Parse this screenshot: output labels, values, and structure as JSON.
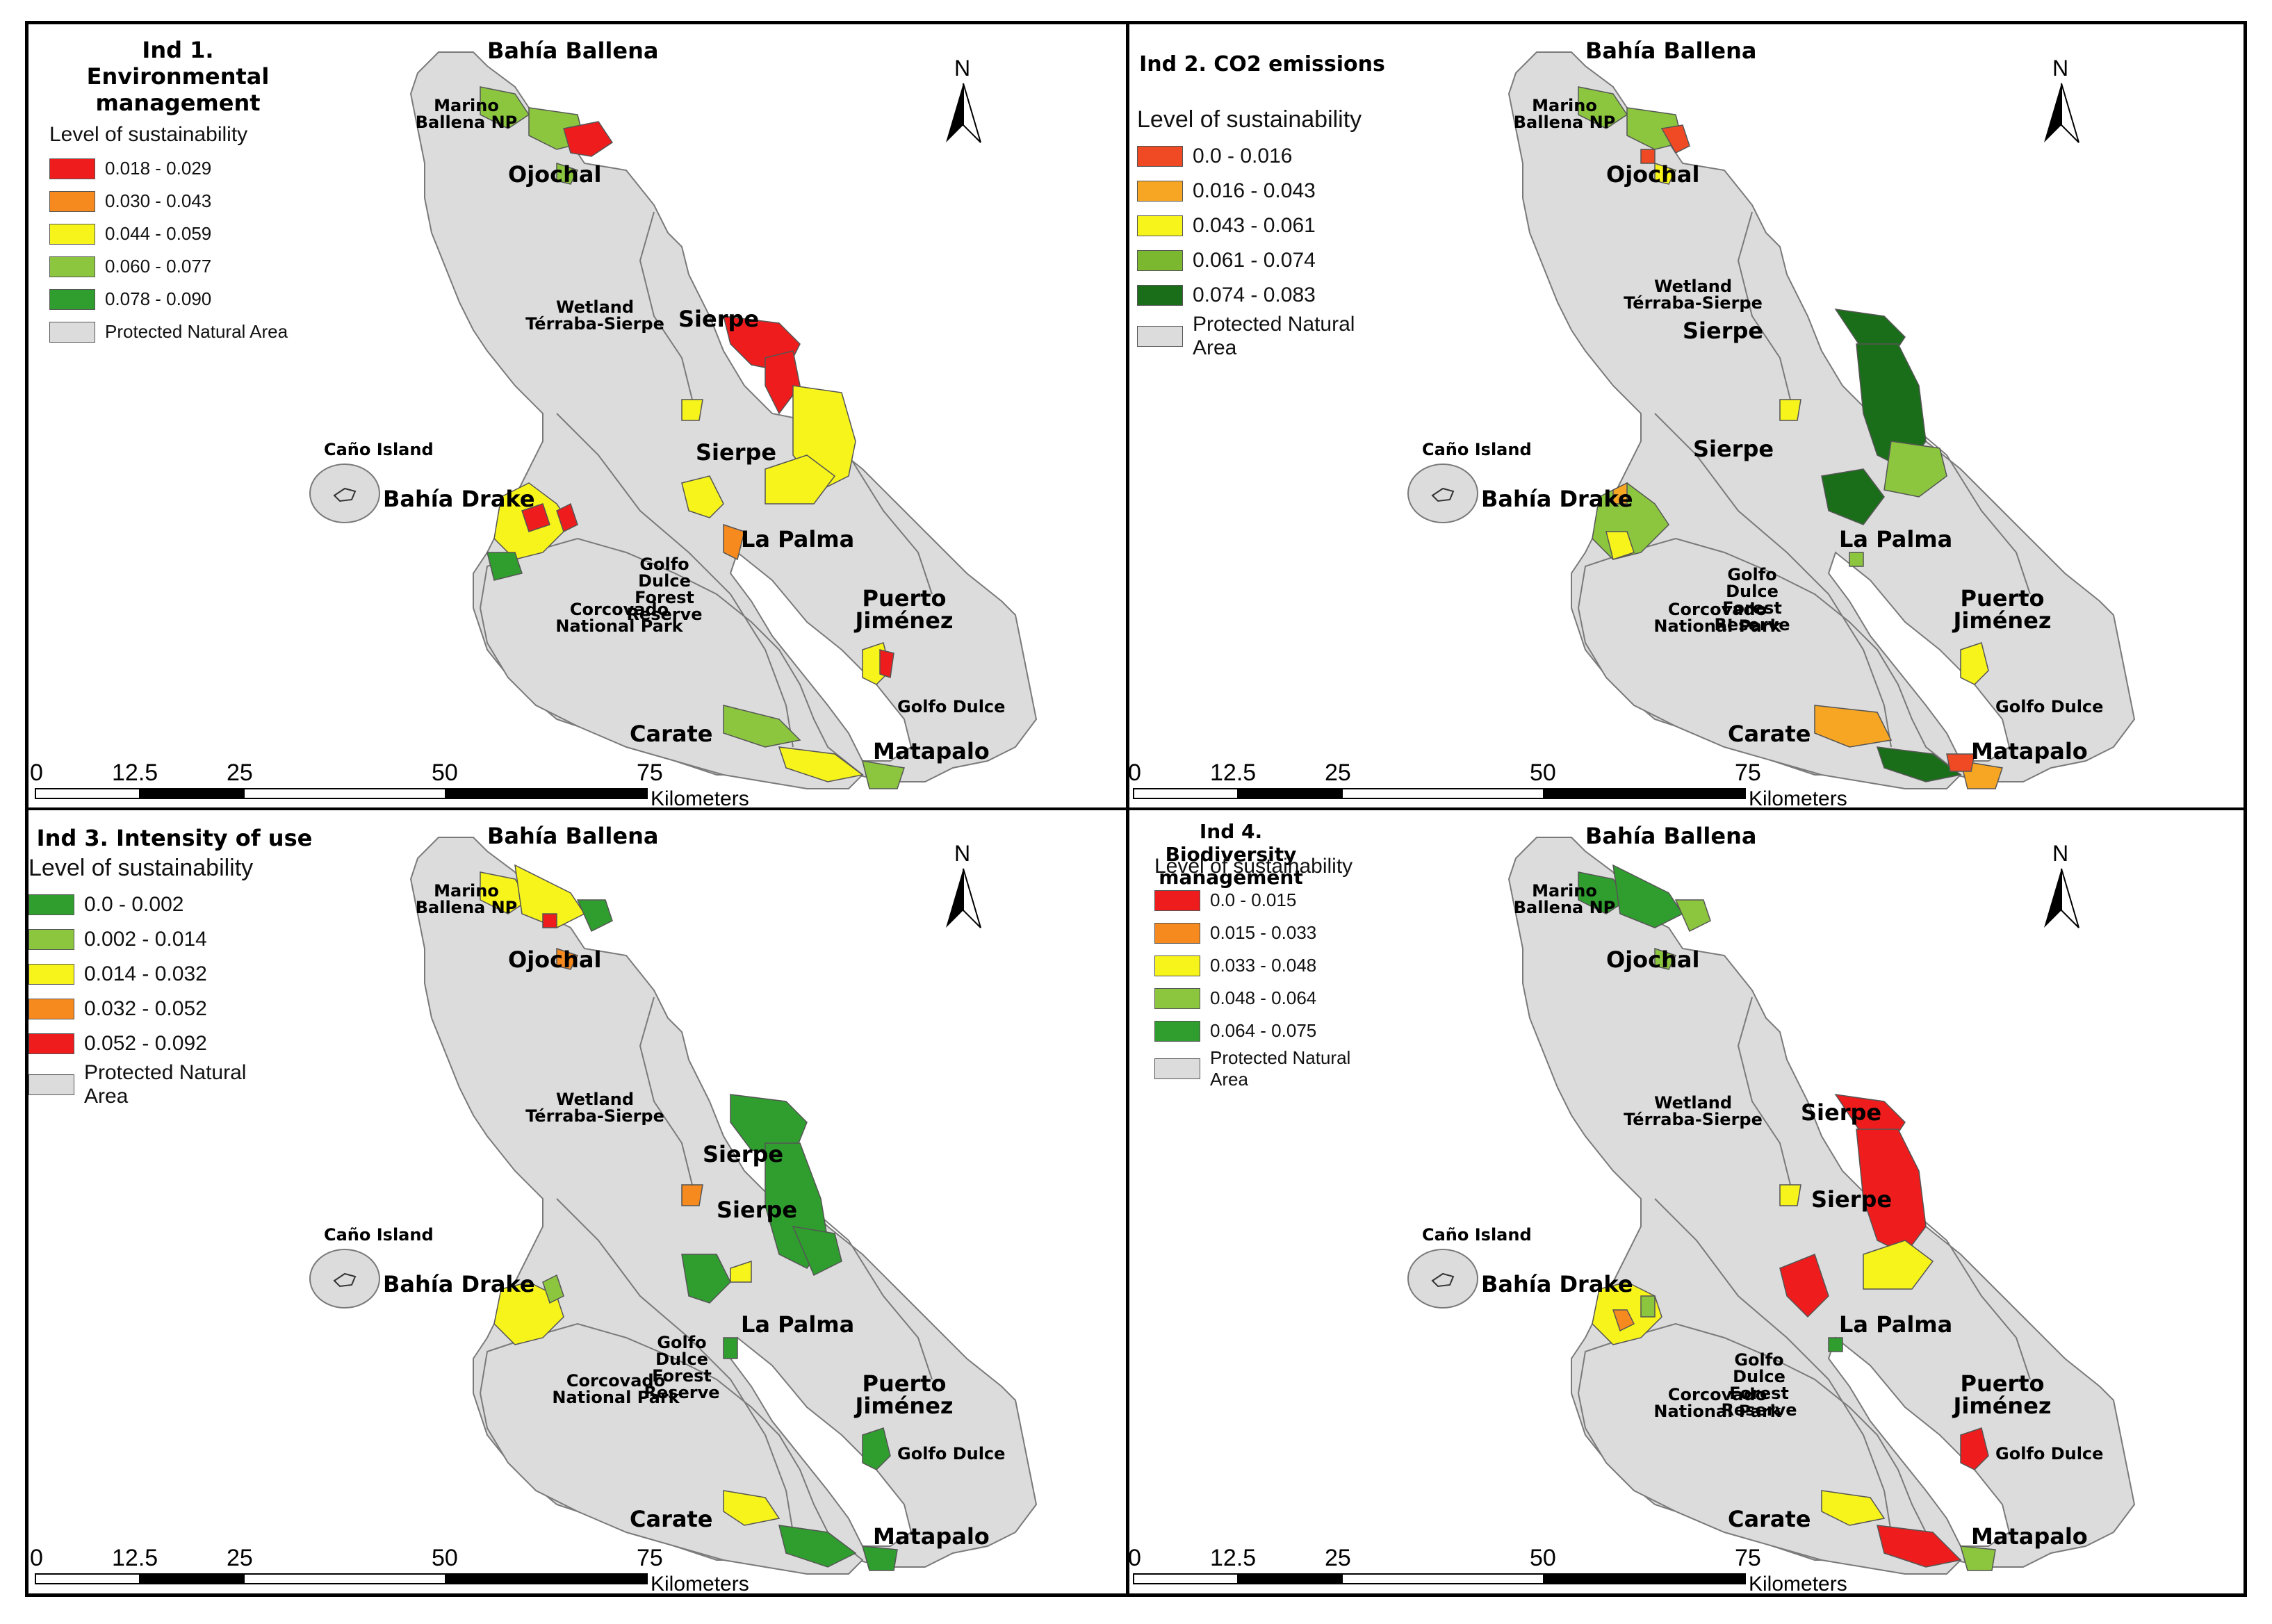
{
  "colors": {
    "protected": "#dcdcdc",
    "outline": "#7a7a7a",
    "red": "#ee1c1c",
    "orange": "#f68a1e",
    "yellow": "#f7f41c",
    "lightgreen": "#8cc63f",
    "green": "#2f9e2f",
    "darkgreen": "#1a6e1a",
    "redorange": "#f04a24",
    "lightorange": "#f6a623"
  },
  "north_label": "N",
  "scale": {
    "ticks": [
      "0",
      "12.5",
      "25",
      "50",
      "75"
    ],
    "unit": "Kilometers"
  },
  "panels": [
    {
      "title": "Ind 1. Environmental management",
      "legend_title": "Level of sustainability",
      "legend": [
        {
          "label": "0.018 - 0.029",
          "color": "#ee1c1c"
        },
        {
          "label": "0.030 - 0.043",
          "color": "#f68a1e"
        },
        {
          "label": "0.044 - 0.059",
          "color": "#f7f41c"
        },
        {
          "label": "0.060 - 0.077",
          "color": "#8cc63f"
        },
        {
          "label": "0.078 - 0.090",
          "color": "#2f9e2f"
        },
        {
          "label": "Protected Natural Area",
          "color": "#dcdcdc"
        }
      ],
      "places": {
        "bahia_ballena": "Bahía Ballena",
        "marino": "Marino Ballena NP",
        "ojochal": "Ojochal",
        "wetland": "Wetland Térraba-Sierpe",
        "sierpe_top": "Sierpe",
        "sierpe_mid": "Sierpe",
        "cano": "Caño Island",
        "drake": "Bahía Drake",
        "la_palma": "La Palma",
        "golfo_reserve": "Golfo Dulce Forest Reserve",
        "corcovado": "Corcovado National Park",
        "puerto": "Puerto Jiménez",
        "golfo_dulce": "Golfo Dulce",
        "carate": "Carate",
        "matapalo": "Matapalo"
      }
    },
    {
      "title": "Ind 2. CO2 emissions",
      "legend_title": "Level of sustainability",
      "legend": [
        {
          "label": "0.0 - 0.016",
          "color": "#f04a24"
        },
        {
          "label": "0.016 - 0.043",
          "color": "#f6a623"
        },
        {
          "label": "0.043 - 0.061",
          "color": "#f7f41c"
        },
        {
          "label": "0.061 - 0.074",
          "color": "#7cb82f"
        },
        {
          "label": "0.074 - 0.083",
          "color": "#1a6e1a"
        },
        {
          "label": "Protected Natural Area",
          "color": "#dcdcdc"
        }
      ],
      "places": {
        "bahia_ballena": "Bahía Ballena",
        "marino": "Marino Ballena NP",
        "ojochal": "Ojochal",
        "wetland": "Wetland Térraba-Sierpe",
        "sierpe_top": "Sierpe",
        "sierpe_mid": "Sierpe",
        "cano": "Caño Island",
        "drake": "Bahía Drake",
        "la_palma": "La Palma",
        "golfo_reserve": "Golfo Dulce Forest Reserve",
        "corcovado": "Corcovado National Park",
        "puerto": "Puerto Jiménez",
        "golfo_dulce": "Golfo Dulce",
        "carate": "Carate",
        "matapalo": "Matapalo"
      }
    },
    {
      "title": "Ind 3. Intensity of use",
      "legend_title": "Level of sustainability",
      "legend": [
        {
          "label": "0.0 - 0.002",
          "color": "#2f9e2f"
        },
        {
          "label": "0.002 - 0.014",
          "color": "#8cc63f"
        },
        {
          "label": "0.014 - 0.032",
          "color": "#f7f41c"
        },
        {
          "label": "0.032 - 0.052",
          "color": "#f68a1e"
        },
        {
          "label": "0.052 - 0.092",
          "color": "#ee1c1c"
        },
        {
          "label": "Protected Natural Area",
          "color": "#dcdcdc"
        }
      ],
      "places": {
        "bahia_ballena": "Bahía Ballena",
        "marino": "Marino Ballena NP",
        "ojochal": "Ojochal",
        "wetland": "Wetland Térraba-Sierpe",
        "sierpe_top": "Sierpe",
        "sierpe_mid": "Sierpe",
        "cano": "Caño Island",
        "drake": "Bahía Drake",
        "la_palma": "La Palma",
        "golfo_reserve": "Golfo Dulce Forest Reserve",
        "corcovado": "Corcovado National Park",
        "puerto": "Puerto Jiménez",
        "golfo_dulce": "Golfo Dulce",
        "carate": "Carate",
        "matapalo": "Matapalo"
      }
    },
    {
      "title": "Ind 4. Biodiversity management",
      "legend_title": "Level of sustainability",
      "legend": [
        {
          "label": "0.0 - 0.015",
          "color": "#ee1c1c"
        },
        {
          "label": "0.015 - 0.033",
          "color": "#f68a1e"
        },
        {
          "label": "0.033 - 0.048",
          "color": "#f7f41c"
        },
        {
          "label": "0.048 - 0.064",
          "color": "#8cc63f"
        },
        {
          "label": "0.064 - 0.075",
          "color": "#2f9e2f"
        },
        {
          "label": "Protected Natural Area",
          "color": "#dcdcdc"
        }
      ],
      "places": {
        "bahia_ballena": "Bahía Ballena",
        "marino": "Marino Ballena NP",
        "ojochal": "Ojochal",
        "wetland": "Wetland Térraba-Sierpe",
        "sierpe_top": "Sierpe",
        "sierpe_mid": "Sierpe",
        "cano": "Caño Island",
        "drake": "Bahía Drake",
        "la_palma": "La Palma",
        "golfo_reserve": "Golfo Dulce Forest Reserve",
        "corcovado": "Corcovado National Park",
        "puerto": "Puerto Jiménez",
        "golfo_dulce": "Golfo Dulce",
        "carate": "Carate",
        "matapalo": "Matapalo"
      }
    }
  ]
}
